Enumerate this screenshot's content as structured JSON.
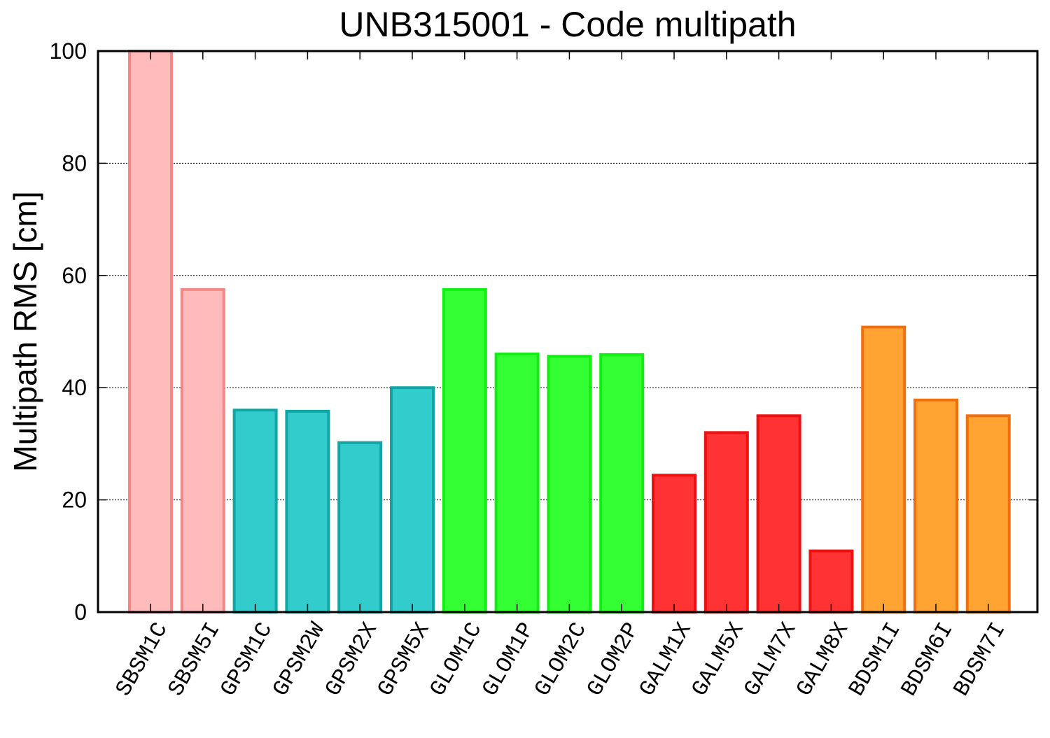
{
  "chart_data": {
    "type": "bar",
    "title": "UNB315001 - Code multipath",
    "xlabel": "",
    "ylabel": "Multipath RMS [cm]",
    "ylim": [
      0,
      100
    ],
    "yticks": [
      0,
      20,
      40,
      60,
      80,
      100
    ],
    "grid": true,
    "categories": [
      "SBSM1C",
      "SBSM5I",
      "GPSM1C",
      "GPSM2W",
      "GPSM2X",
      "GPSM5X",
      "GLOM1C",
      "GLOM1P",
      "GLOM2C",
      "GLOM2P",
      "GALM1X",
      "GALM5X",
      "GALM7X",
      "GALM8X",
      "BDSM1I",
      "BDSM6I",
      "BDSM7I"
    ],
    "values": [
      100,
      57.5,
      36,
      35.8,
      30.2,
      40,
      57.5,
      46,
      45.6,
      45.9,
      24.4,
      32,
      35,
      10.9,
      50.8,
      37.8,
      35
    ],
    "groups": [
      {
        "system": "SBS",
        "fill": "#ffbbbb",
        "stroke": "#f08888",
        "count": 2
      },
      {
        "system": "GPS",
        "fill": "#33cccc",
        "stroke": "#11a5a5",
        "count": 4
      },
      {
        "system": "GLO",
        "fill": "#33ff33",
        "stroke": "#11ee11",
        "count": 4
      },
      {
        "system": "GAL",
        "fill": "#ff3333",
        "stroke": "#ee1111",
        "count": 4
      },
      {
        "system": "BDS",
        "fill": "#ffa333",
        "stroke": "#f07011",
        "count": 3
      }
    ]
  }
}
